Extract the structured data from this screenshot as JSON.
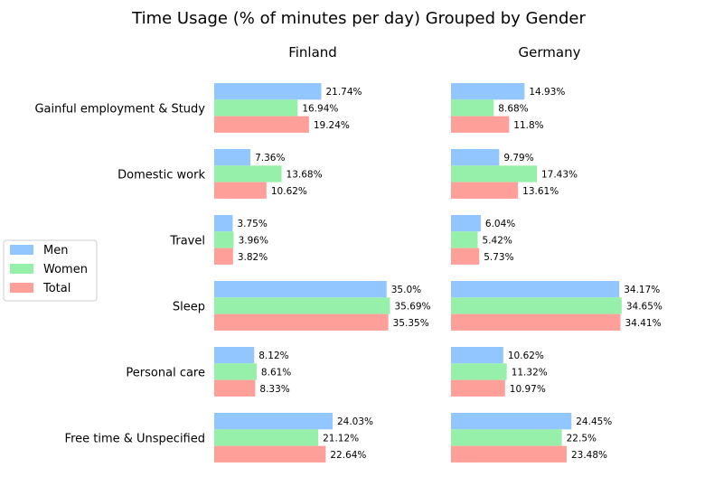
{
  "chart_data": {
    "type": "bar",
    "orientation": "horizontal",
    "title": "Time Usage (% of minutes per day) Grouped by Gender",
    "categories": [
      "Gainful employment & Study",
      "Domestic work",
      "Travel",
      "Sleep",
      "Personal care",
      "Free time & Unspecified"
    ],
    "panels": [
      {
        "name": "Finland",
        "series": [
          {
            "name": "Men",
            "values": [
              21.74,
              7.36,
              3.75,
              35.0,
              8.12,
              24.03
            ],
            "labels": [
              "21.74%",
              "7.36%",
              "3.75%",
              "35.0%",
              "8.12%",
              "24.03%"
            ]
          },
          {
            "name": "Women",
            "values": [
              16.94,
              13.68,
              3.96,
              35.69,
              8.61,
              21.12
            ],
            "labels": [
              "16.94%",
              "13.68%",
              "3.96%",
              "35.69%",
              "8.61%",
              "21.12%"
            ]
          },
          {
            "name": "Total",
            "values": [
              19.24,
              10.62,
              3.82,
              35.35,
              8.33,
              22.64
            ],
            "labels": [
              "19.24%",
              "10.62%",
              "3.82%",
              "35.35%",
              "8.33%",
              "22.64%"
            ]
          }
        ]
      },
      {
        "name": "Germany",
        "series": [
          {
            "name": "Men",
            "values": [
              14.93,
              9.79,
              6.04,
              34.17,
              10.62,
              24.45
            ],
            "labels": [
              "14.93%",
              "9.79%",
              "6.04%",
              "34.17%",
              "10.62%",
              "24.45%"
            ]
          },
          {
            "name": "Women",
            "values": [
              8.68,
              17.43,
              5.42,
              34.65,
              11.32,
              22.5
            ],
            "labels": [
              "8.68%",
              "17.43%",
              "5.42%",
              "34.65%",
              "11.32%",
              "22.5%"
            ]
          },
          {
            "name": "Total",
            "values": [
              11.8,
              13.61,
              5.73,
              34.41,
              10.97,
              23.48
            ],
            "labels": [
              "11.8%",
              "13.61%",
              "5.73%",
              "34.41%",
              "10.97%",
              "23.48%"
            ]
          }
        ]
      }
    ],
    "legend": {
      "placement": "left",
      "entries": [
        "Men",
        "Women",
        "Total"
      ]
    },
    "colors": {
      "Men": "#92c6ff",
      "Women": "#97f0aa",
      "Total": "#ff9f9a"
    },
    "grid": false,
    "xlim": [
      0,
      36
    ]
  }
}
